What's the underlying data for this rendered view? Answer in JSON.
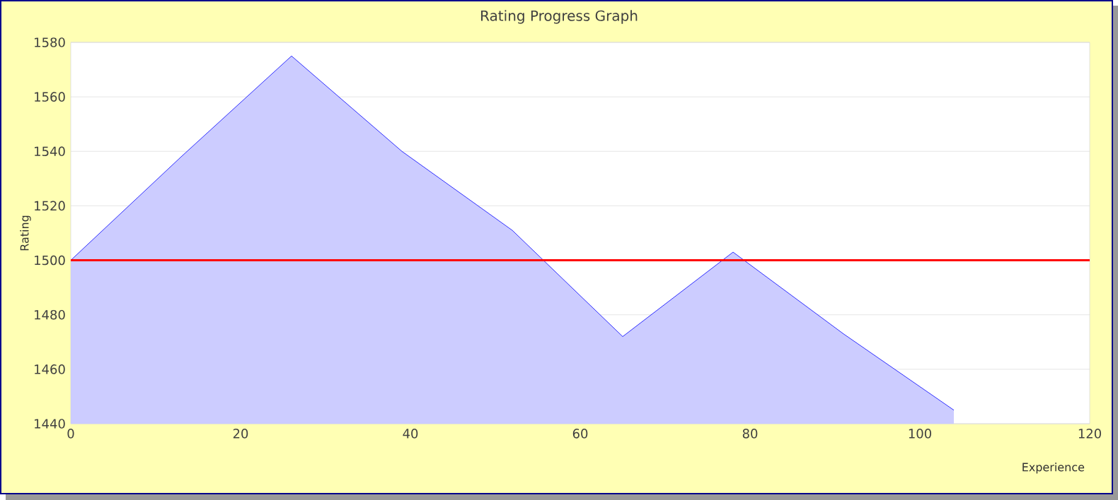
{
  "chart_data": {
    "type": "area",
    "title": "Rating Progress Graph",
    "xlabel": "Experience",
    "ylabel": "Rating",
    "x": [
      0,
      13,
      26,
      39,
      52,
      65,
      78,
      91,
      104
    ],
    "series": [
      {
        "color": "#0000ff",
        "values": [
          1500,
          1538,
          1575,
          1540,
          1511,
          1472,
          1503,
          1473,
          1445
        ]
      }
    ],
    "xlim": [
      0,
      120
    ],
    "xticks": [
      0,
      20,
      40,
      60,
      80,
      100,
      120
    ],
    "ylim": [
      1440,
      1580
    ],
    "yticks": [
      1440,
      1460,
      1480,
      1500,
      1520,
      1540,
      1560,
      1580
    ],
    "grid": "y",
    "ref_lines": [
      {
        "axis": "y",
        "value": 1500,
        "color": "#ff0000"
      }
    ]
  }
}
